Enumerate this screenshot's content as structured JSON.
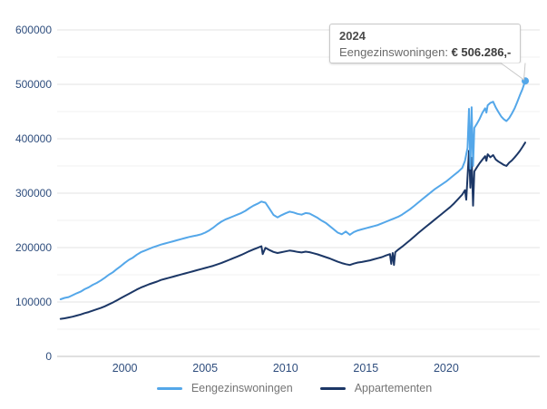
{
  "tooltip": {
    "title": "2024",
    "series_label": "Eengezinswoningen: ",
    "value": "€ 506.286,-"
  },
  "legend": {
    "items": [
      {
        "label": "Eengezinswoningen",
        "color": "#54a7e9"
      },
      {
        "label": "Appartementen",
        "color": "#1c3766"
      }
    ]
  },
  "colors": {
    "axis_label": "#2e4d7d",
    "legend_text": "#757575",
    "grid_major": "#e3e3e3",
    "grid_minor": "#f1f1f1",
    "axis_line": "#c2c2c2",
    "tooltip_border": "#c8c8c8",
    "series_light_blue": "#54a7e9",
    "series_navy": "#1c3766"
  },
  "chart_data": {
    "type": "line",
    "title": "",
    "xlabel": "",
    "ylabel": "",
    "xlim": [
      1995.9,
      2025.2
    ],
    "ylim": [
      0,
      600000
    ],
    "x_ticks": [
      2000,
      2005,
      2010,
      2015,
      2020
    ],
    "y_ticks": [
      0,
      100000,
      200000,
      300000,
      400000,
      500000,
      600000
    ],
    "y_minor_step": 50000,
    "grid": "horizontal major every 100000, minor every 50000",
    "legend_position": "bottom-center",
    "end_marker": {
      "series": "Eengezinswoningen",
      "x": 2024.92,
      "y": 506286
    },
    "series": [
      {
        "name": "Appartementen",
        "color": "#1c3766",
        "points": [
          [
            1996.0,
            69000
          ],
          [
            1996.25,
            70000
          ],
          [
            1996.5,
            71500
          ],
          [
            1996.75,
            73000
          ],
          [
            1997.0,
            75000
          ],
          [
            1997.25,
            77000
          ],
          [
            1997.5,
            79500
          ],
          [
            1997.75,
            81500
          ],
          [
            1998.0,
            84000
          ],
          [
            1998.25,
            86500
          ],
          [
            1998.5,
            89000
          ],
          [
            1998.75,
            92000
          ],
          [
            1999.0,
            95500
          ],
          [
            1999.25,
            99000
          ],
          [
            1999.5,
            103000
          ],
          [
            1999.75,
            107000
          ],
          [
            2000.0,
            111000
          ],
          [
            2000.25,
            115000
          ],
          [
            2000.5,
            119000
          ],
          [
            2000.75,
            123000
          ],
          [
            2001.0,
            126500
          ],
          [
            2001.25,
            129500
          ],
          [
            2001.5,
            132500
          ],
          [
            2001.75,
            135000
          ],
          [
            2002.0,
            137500
          ],
          [
            2002.25,
            140500
          ],
          [
            2002.5,
            142500
          ],
          [
            2002.75,
            144500
          ],
          [
            2003.0,
            146500
          ],
          [
            2003.25,
            148500
          ],
          [
            2003.5,
            150500
          ],
          [
            2003.75,
            152500
          ],
          [
            2004.0,
            154500
          ],
          [
            2004.25,
            156500
          ],
          [
            2004.5,
            158500
          ],
          [
            2004.75,
            160500
          ],
          [
            2005.0,
            162500
          ],
          [
            2005.25,
            164500
          ],
          [
            2005.5,
            166500
          ],
          [
            2005.75,
            169000
          ],
          [
            2006.0,
            171500
          ],
          [
            2006.25,
            174500
          ],
          [
            2006.5,
            177500
          ],
          [
            2006.75,
            180500
          ],
          [
            2007.0,
            183500
          ],
          [
            2007.25,
            186500
          ],
          [
            2007.5,
            190000
          ],
          [
            2007.75,
            193500
          ],
          [
            2008.0,
            196500
          ],
          [
            2008.25,
            199500
          ],
          [
            2008.5,
            202500
          ],
          [
            2008.58,
            188000
          ],
          [
            2008.75,
            199500
          ],
          [
            2009.0,
            195500
          ],
          [
            2009.25,
            192000
          ],
          [
            2009.5,
            190000
          ],
          [
            2009.75,
            191500
          ],
          [
            2010.0,
            193000
          ],
          [
            2010.25,
            194500
          ],
          [
            2010.5,
            193500
          ],
          [
            2010.75,
            192000
          ],
          [
            2011.0,
            191000
          ],
          [
            2011.25,
            192500
          ],
          [
            2011.5,
            191500
          ],
          [
            2011.75,
            189500
          ],
          [
            2012.0,
            187500
          ],
          [
            2012.25,
            185000
          ],
          [
            2012.5,
            182500
          ],
          [
            2012.75,
            180000
          ],
          [
            2013.0,
            177000
          ],
          [
            2013.25,
            174000
          ],
          [
            2013.5,
            171500
          ],
          [
            2013.75,
            169500
          ],
          [
            2014.0,
            168000
          ],
          [
            2014.25,
            170500
          ],
          [
            2014.5,
            172500
          ],
          [
            2014.75,
            173500
          ],
          [
            2015.0,
            175000
          ],
          [
            2015.25,
            176500
          ],
          [
            2015.5,
            178500
          ],
          [
            2015.75,
            180500
          ],
          [
            2016.0,
            182500
          ],
          [
            2016.25,
            185500
          ],
          [
            2016.5,
            188000
          ],
          [
            2016.58,
            170000
          ],
          [
            2016.67,
            190000
          ],
          [
            2016.75,
            168000
          ],
          [
            2016.83,
            191500
          ],
          [
            2017.0,
            196000
          ],
          [
            2017.25,
            201500
          ],
          [
            2017.5,
            207500
          ],
          [
            2017.75,
            213500
          ],
          [
            2018.0,
            220000
          ],
          [
            2018.25,
            226500
          ],
          [
            2018.5,
            232500
          ],
          [
            2018.75,
            238500
          ],
          [
            2019.0,
            244500
          ],
          [
            2019.25,
            250500
          ],
          [
            2019.5,
            256500
          ],
          [
            2019.75,
            262500
          ],
          [
            2020.0,
            268500
          ],
          [
            2020.25,
            274500
          ],
          [
            2020.5,
            281500
          ],
          [
            2020.75,
            289500
          ],
          [
            2021.0,
            297500
          ],
          [
            2021.17,
            305500
          ],
          [
            2021.25,
            288000
          ],
          [
            2021.33,
            330000
          ],
          [
            2021.42,
            378000
          ],
          [
            2021.5,
            310000
          ],
          [
            2021.58,
            365000
          ],
          [
            2021.67,
            277000
          ],
          [
            2021.75,
            340000
          ],
          [
            2021.92,
            348000
          ],
          [
            2022.08,
            355000
          ],
          [
            2022.25,
            361500
          ],
          [
            2022.42,
            368000
          ],
          [
            2022.5,
            359500
          ],
          [
            2022.58,
            371500
          ],
          [
            2022.75,
            366000
          ],
          [
            2022.92,
            370000
          ],
          [
            2023.08,
            362000
          ],
          [
            2023.25,
            358000
          ],
          [
            2023.42,
            355000
          ],
          [
            2023.58,
            352000
          ],
          [
            2023.75,
            350000
          ],
          [
            2023.92,
            356000
          ],
          [
            2024.08,
            360000
          ],
          [
            2024.25,
            365500
          ],
          [
            2024.42,
            371500
          ],
          [
            2024.58,
            377500
          ],
          [
            2024.75,
            385000
          ],
          [
            2024.92,
            393000
          ]
        ]
      },
      {
        "name": "Eengezinswoningen",
        "color": "#54a7e9",
        "points": [
          [
            1996.0,
            105000
          ],
          [
            1996.25,
            107500
          ],
          [
            1996.5,
            109000
          ],
          [
            1996.75,
            112500
          ],
          [
            1997.0,
            116000
          ],
          [
            1997.25,
            119000
          ],
          [
            1997.5,
            123500
          ],
          [
            1997.75,
            127000
          ],
          [
            1998.0,
            131500
          ],
          [
            1998.25,
            135000
          ],
          [
            1998.5,
            139500
          ],
          [
            1998.75,
            144500
          ],
          [
            1999.0,
            150000
          ],
          [
            1999.25,
            154500
          ],
          [
            1999.5,
            160500
          ],
          [
            1999.75,
            166000
          ],
          [
            2000.0,
            172000
          ],
          [
            2000.25,
            177500
          ],
          [
            2000.5,
            181500
          ],
          [
            2000.75,
            187000
          ],
          [
            2001.0,
            191500
          ],
          [
            2001.25,
            194500
          ],
          [
            2001.5,
            197500
          ],
          [
            2001.75,
            200500
          ],
          [
            2002.0,
            203000
          ],
          [
            2002.25,
            205500
          ],
          [
            2002.5,
            207500
          ],
          [
            2002.75,
            209500
          ],
          [
            2003.0,
            211500
          ],
          [
            2003.25,
            213500
          ],
          [
            2003.5,
            215500
          ],
          [
            2003.75,
            217500
          ],
          [
            2004.0,
            219500
          ],
          [
            2004.25,
            221000
          ],
          [
            2004.5,
            222500
          ],
          [
            2004.75,
            224500
          ],
          [
            2005.0,
            227500
          ],
          [
            2005.25,
            231500
          ],
          [
            2005.5,
            236500
          ],
          [
            2005.75,
            242500
          ],
          [
            2006.0,
            247500
          ],
          [
            2006.25,
            251500
          ],
          [
            2006.5,
            254500
          ],
          [
            2006.75,
            257500
          ],
          [
            2007.0,
            260500
          ],
          [
            2007.25,
            263500
          ],
          [
            2007.5,
            267500
          ],
          [
            2007.75,
            272500
          ],
          [
            2008.0,
            277000
          ],
          [
            2008.25,
            280500
          ],
          [
            2008.5,
            284500
          ],
          [
            2008.75,
            282500
          ],
          [
            2009.0,
            271500
          ],
          [
            2009.25,
            260000
          ],
          [
            2009.5,
            255500
          ],
          [
            2009.75,
            259500
          ],
          [
            2010.0,
            263000
          ],
          [
            2010.25,
            266000
          ],
          [
            2010.5,
            264500
          ],
          [
            2010.75,
            262000
          ],
          [
            2011.0,
            260500
          ],
          [
            2011.25,
            263500
          ],
          [
            2011.5,
            262500
          ],
          [
            2011.75,
            258500
          ],
          [
            2012.0,
            254500
          ],
          [
            2012.25,
            249500
          ],
          [
            2012.5,
            245500
          ],
          [
            2012.75,
            239500
          ],
          [
            2013.0,
            233500
          ],
          [
            2013.25,
            227500
          ],
          [
            2013.5,
            224500
          ],
          [
            2013.75,
            229500
          ],
          [
            2014.0,
            223500
          ],
          [
            2014.25,
            228500
          ],
          [
            2014.5,
            231500
          ],
          [
            2014.75,
            233500
          ],
          [
            2015.0,
            235500
          ],
          [
            2015.25,
            237500
          ],
          [
            2015.5,
            239500
          ],
          [
            2015.75,
            241500
          ],
          [
            2016.0,
            244500
          ],
          [
            2016.25,
            247500
          ],
          [
            2016.5,
            250500
          ],
          [
            2016.75,
            253500
          ],
          [
            2017.0,
            256500
          ],
          [
            2017.25,
            260500
          ],
          [
            2017.5,
            265500
          ],
          [
            2017.75,
            270500
          ],
          [
            2018.0,
            276500
          ],
          [
            2018.25,
            282500
          ],
          [
            2018.5,
            288500
          ],
          [
            2018.75,
            294500
          ],
          [
            2019.0,
            300500
          ],
          [
            2019.25,
            306500
          ],
          [
            2019.5,
            311500
          ],
          [
            2019.75,
            316500
          ],
          [
            2020.0,
            321500
          ],
          [
            2020.25,
            327500
          ],
          [
            2020.5,
            333500
          ],
          [
            2020.75,
            339500
          ],
          [
            2021.0,
            346500
          ],
          [
            2021.17,
            359500
          ],
          [
            2021.25,
            371500
          ],
          [
            2021.33,
            383000
          ],
          [
            2021.42,
            455000
          ],
          [
            2021.5,
            345000
          ],
          [
            2021.58,
            458000
          ],
          [
            2021.67,
            350000
          ],
          [
            2021.75,
            420000
          ],
          [
            2021.92,
            428000
          ],
          [
            2022.08,
            436500
          ],
          [
            2022.25,
            447500
          ],
          [
            2022.42,
            456000
          ],
          [
            2022.5,
            448000
          ],
          [
            2022.58,
            461500
          ],
          [
            2022.75,
            466000
          ],
          [
            2022.92,
            468000
          ],
          [
            2023.08,
            458000
          ],
          [
            2023.25,
            449000
          ],
          [
            2023.42,
            441000
          ],
          [
            2023.58,
            436000
          ],
          [
            2023.75,
            432500
          ],
          [
            2023.92,
            438000
          ],
          [
            2024.08,
            446000
          ],
          [
            2024.25,
            455500
          ],
          [
            2024.42,
            467500
          ],
          [
            2024.58,
            479500
          ],
          [
            2024.75,
            491500
          ],
          [
            2024.92,
            506286
          ]
        ]
      }
    ]
  }
}
